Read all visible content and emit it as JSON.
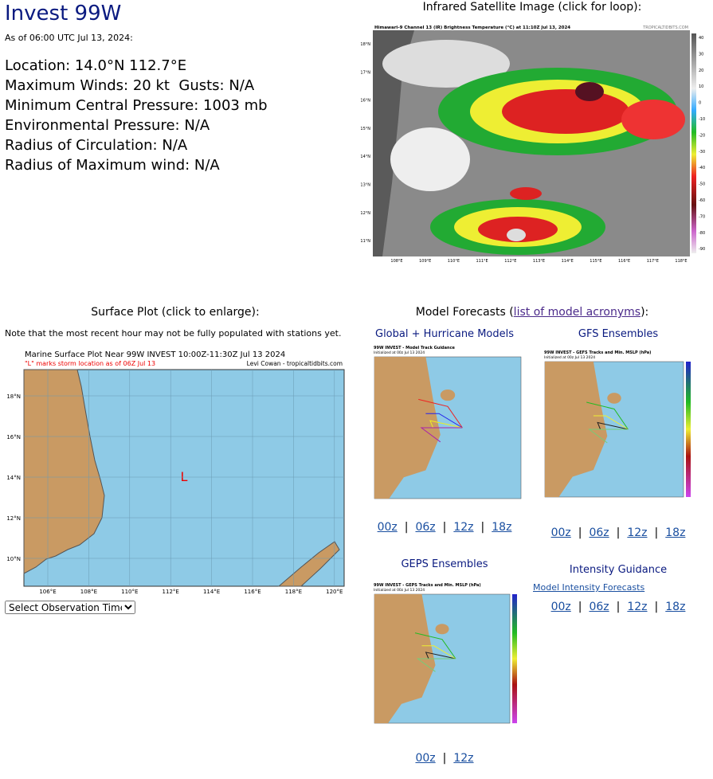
{
  "header": {
    "title": "Invest 99W",
    "timestamp": "As of 06:00 UTC Jul 13, 2024:"
  },
  "info": [
    "Location: 14.0°N 112.7°E",
    "Maximum Winds: 20 kt  Gusts: N/A",
    "Minimum Central Pressure: 1003 mb",
    "Environmental Pressure: N/A",
    "Radius of Circulation: N/A",
    "Radius of Maximum wind: N/A"
  ],
  "satellite": {
    "heading": "Infrared Satellite Image (click for loop):",
    "image_title": "Himawari-9 Channel 13 (IR) Brightness Temperature (°C) at 11:10Z Jul 13, 2024",
    "credit": "TROPICALTIDBITS.COM",
    "lat_labels": [
      "18°N",
      "17°N",
      "16°N",
      "15°N",
      "14°N",
      "13°N",
      "12°N",
      "11°N"
    ],
    "lon_labels": [
      "108°E",
      "109°E",
      "110°E",
      "111°E",
      "112°E",
      "113°E",
      "114°E",
      "115°E",
      "116°E",
      "117°E",
      "118°E"
    ],
    "colorbar_ticks": [
      40,
      30,
      20,
      10,
      0,
      -10,
      -20,
      -30,
      -40,
      -50,
      -60,
      -70,
      -80,
      -90
    ]
  },
  "surface": {
    "heading": "Surface Plot (click to enlarge):",
    "note": "Note that the most recent hour may not be fully populated with stations yet.",
    "image_title": "Marine Surface Plot Near 99W INVEST 10:00Z-11:30Z Jul 13 2024",
    "image_subtitle": "\"L\" marks storm location as of 06Z Jul 13",
    "credit": "Levi Cowan - tropicaltidbits.com",
    "storm_marker": "L",
    "lat_labels": [
      "18°N",
      "16°N",
      "14°N",
      "12°N",
      "10°N"
    ],
    "lon_labels": [
      "106°E",
      "108°E",
      "110°E",
      "112°E",
      "114°E",
      "116°E",
      "118°E",
      "120°E"
    ],
    "select": "Select Observation Time..."
  },
  "models": {
    "heading_prefix": "Model Forecasts (",
    "heading_link": "list of model acronyms",
    "heading_suffix": "):",
    "separator": "|",
    "panels": [
      {
        "title": "Global + Hurricane Models",
        "image_title": "99W INVEST - Model Track Guidance",
        "image_subtitle": "Initialized at 00z Jul 13 2024",
        "runs": [
          "00z",
          "06z",
          "12z",
          "18z"
        ]
      },
      {
        "title": "GFS Ensembles",
        "image_title": "99W INVEST - GEFS Tracks and Min. MSLP (hPa)",
        "image_subtitle": "Initialized at 00z Jul 13 2024",
        "runs": [
          "00z",
          "06z",
          "12z",
          "18z"
        ]
      },
      {
        "title": "GEPS Ensembles",
        "image_title": "99W INVEST - GEPS Tracks and Min. MSLP (hPa)",
        "image_subtitle": "Initialized at 00z Jul 13 2024",
        "runs": [
          "00z",
          "12z"
        ]
      }
    ],
    "intensity": {
      "title": "Intensity Guidance",
      "link": "Model Intensity Forecasts",
      "runs": [
        "00z",
        "06z",
        "12z",
        "18z"
      ]
    }
  }
}
